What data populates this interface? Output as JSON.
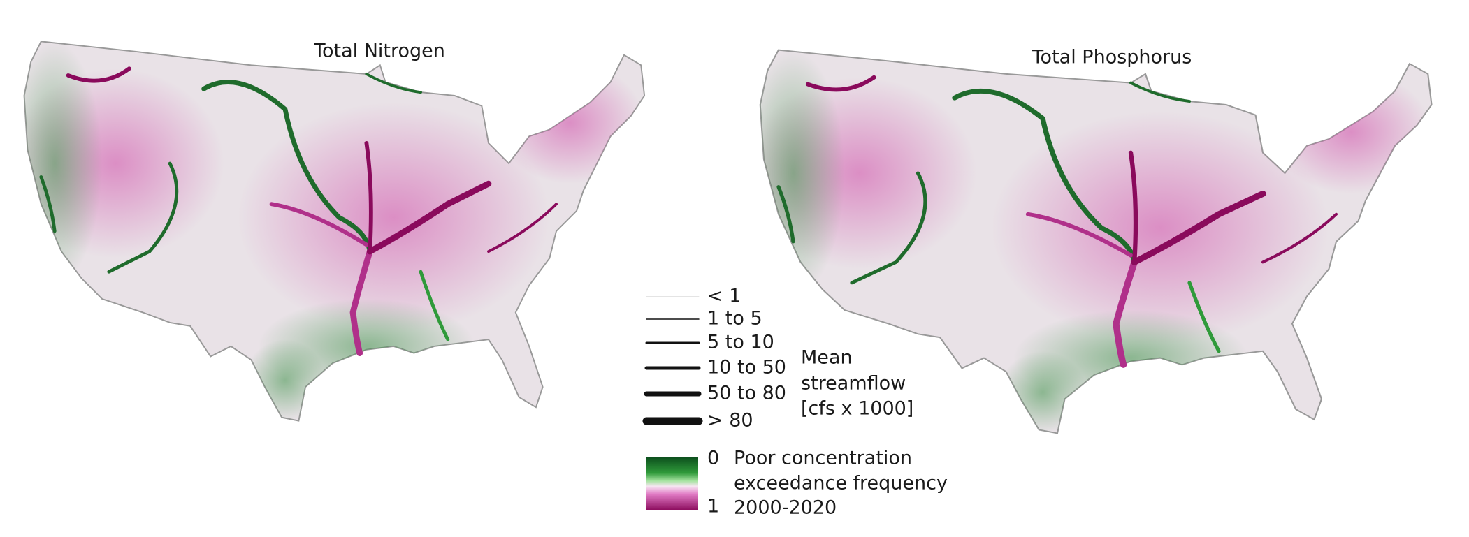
{
  "maps": [
    {
      "title": "Total Nitrogen"
    },
    {
      "title": "Total Phosphorus"
    }
  ],
  "legend": {
    "streamflow": {
      "items": [
        "< 1",
        "1 to 5",
        "5 to 10",
        "10 to 50",
        "50 to 80",
        "> 80"
      ],
      "title": [
        "Mean",
        "streamflow",
        "[cfs x 1000]"
      ]
    },
    "color": {
      "min": "0",
      "max": "1",
      "title": [
        "Poor concentration",
        "exceedance frequency",
        "2000-2020"
      ]
    }
  }
}
